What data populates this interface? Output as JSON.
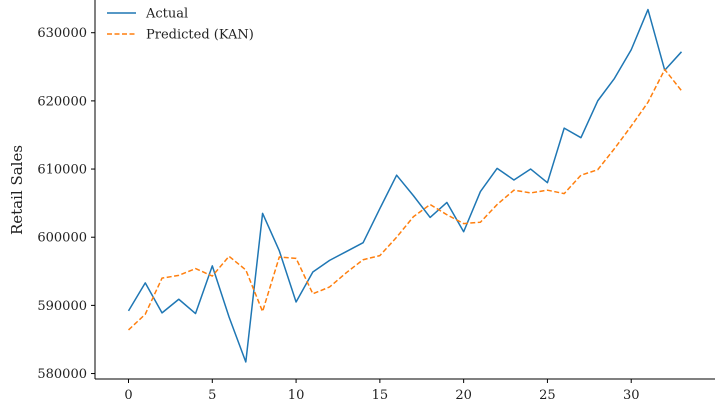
{
  "chart_data": {
    "type": "line",
    "title": "",
    "xlabel": "",
    "ylabel": "Retail Sales",
    "xlim": [
      -2,
      35
    ],
    "ylim": [
      579200,
      634800
    ],
    "x_ticks": [
      0,
      5,
      10,
      15,
      20,
      25,
      30
    ],
    "y_ticks": [
      580000,
      590000,
      600000,
      610000,
      620000,
      630000
    ],
    "grid": false,
    "legend_position": "top-left",
    "x": [
      0,
      1,
      2,
      3,
      4,
      5,
      6,
      7,
      8,
      9,
      10,
      11,
      12,
      13,
      14,
      15,
      16,
      17,
      18,
      19,
      20,
      21,
      22,
      23,
      24,
      25,
      26,
      27,
      28,
      29,
      30,
      31,
      32,
      33
    ],
    "series": [
      {
        "name": "Actual",
        "color": "#1f77b4",
        "style": "solid",
        "values": [
          589200,
          593300,
          588900,
          590900,
          588800,
          595800,
          588300,
          581700,
          603500,
          598000,
          590500,
          594900,
          596600,
          597900,
          599200,
          604200,
          609100,
          606100,
          602900,
          605100,
          600800,
          606700,
          610100,
          608400,
          610000,
          608000,
          616000,
          614600,
          620000,
          623300,
          627500,
          633400,
          624500,
          627200
        ]
      },
      {
        "name": "Predicted (KAN)",
        "color": "#ff7f0e",
        "style": "dashed",
        "values": [
          586400,
          588700,
          594000,
          594400,
          595400,
          594300,
          597200,
          595200,
          589100,
          597100,
          596900,
          591700,
          592700,
          594800,
          596700,
          597300,
          600000,
          603000,
          604800,
          603300,
          602000,
          602200,
          604800,
          606900,
          606500,
          606900,
          606400,
          609100,
          609900,
          613000,
          616300,
          619800,
          624600,
          621500
        ]
      }
    ]
  }
}
